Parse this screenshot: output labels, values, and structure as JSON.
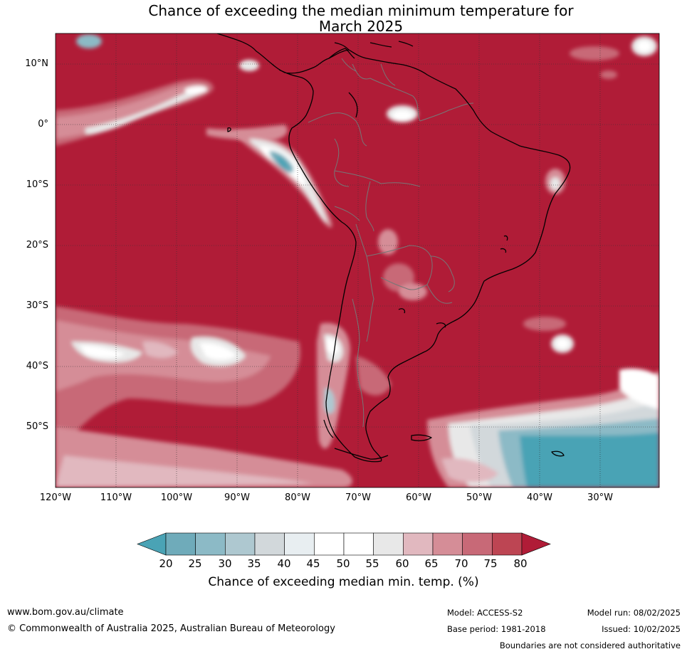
{
  "title_line1": "Chance of exceeding the median minimum temperature for",
  "title_line2": "March 2025",
  "lat_labels": [
    "10°N",
    "0°",
    "10°S",
    "20°S",
    "30°S",
    "40°S",
    "50°S"
  ],
  "lon_labels": [
    "120°W",
    "110°W",
    "100°W",
    "90°W",
    "80°W",
    "70°W",
    "60°W",
    "50°W",
    "40°W",
    "30°W"
  ],
  "colorbar": {
    "ticks": [
      "20",
      "25",
      "30",
      "35",
      "40",
      "45",
      "50",
      "55",
      "60",
      "65",
      "70",
      "75",
      "80"
    ],
    "colors": [
      "#4aa3b5",
      "#6fabba",
      "#8cbac6",
      "#aec8d0",
      "#d2d8db",
      "#e8eef1",
      "#ffffff",
      "#ffffff",
      "#e8e8e8",
      "#e1b8bf",
      "#d58d97",
      "#c86977",
      "#bd4553",
      "#b01c37"
    ],
    "title": "Chance of exceeding median min. temp. (%)"
  },
  "footer": {
    "url": "www.bom.gov.au/climate",
    "copyright": "© Commonwealth of Australia 2025, Australian Bureau of Meteorology",
    "model": "Model: ACCESS-S2",
    "base_period": "Base period: 1981-2018",
    "model_run": "Model run: 08/02/2025",
    "issued": "Issued: 10/02/2025",
    "boundaries": "Boundaries are not considered authoritative"
  }
}
